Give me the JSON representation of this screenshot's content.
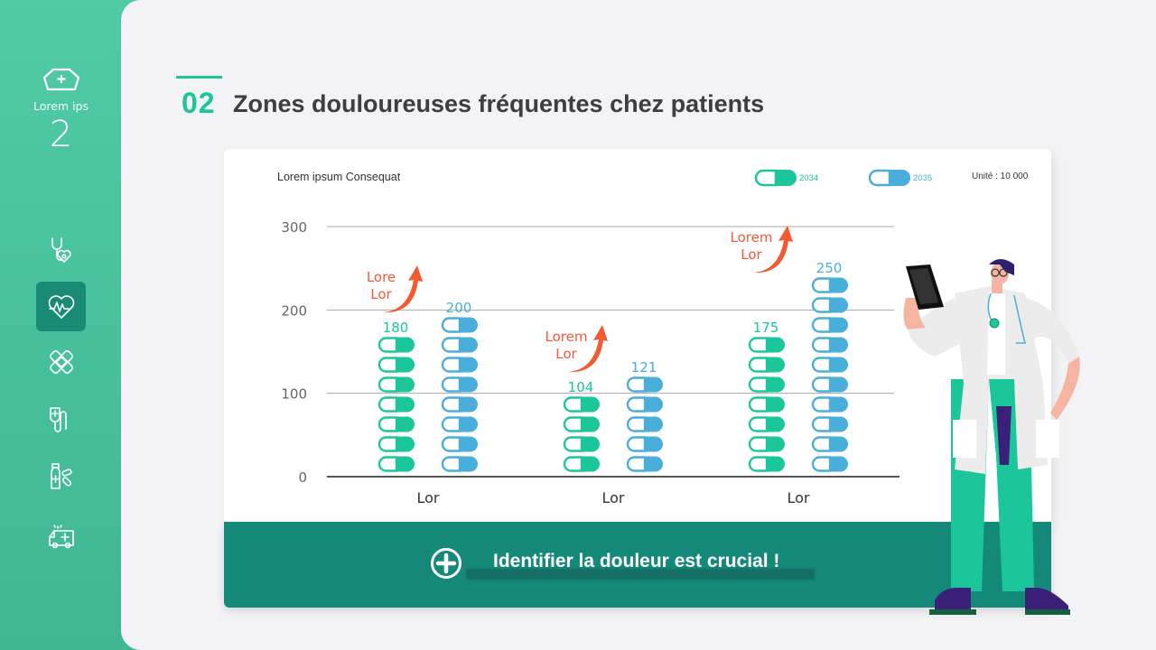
{
  "sidebar": {
    "brand": {
      "icon": "nurse-cap-icon",
      "label": "Lorem ips",
      "number": "2"
    },
    "items": [
      {
        "icon": "stethoscope-heart-icon",
        "active": false
      },
      {
        "icon": "heart-pulse-icon",
        "active": true
      },
      {
        "icon": "bandage-icon",
        "active": false
      },
      {
        "icon": "iv-drip-icon",
        "active": false
      },
      {
        "icon": "medicine-bottle-pills-icon",
        "active": false
      },
      {
        "icon": "ambulance-icon",
        "active": false
      }
    ]
  },
  "header": {
    "number": "02",
    "title": "Zones douloureuses fréquentes chez patients"
  },
  "card": {
    "chart_title": "Lorem ipsum Consequat",
    "legend": [
      {
        "label": "2034",
        "color": "#1bc79a"
      },
      {
        "label": "2035",
        "color": "#4aaedb"
      }
    ],
    "unit": "Unité : 10 000"
  },
  "chart_data": {
    "type": "bar",
    "title": "Lorem ipsum Consequat",
    "xlabel": "",
    "ylabel": "",
    "unit": "Unité : 10 000",
    "categories": [
      "Lor",
      "Lor",
      "Lor"
    ],
    "series": [
      {
        "name": "2034",
        "color": "#1bc79a",
        "values": [
          180,
          104,
          175
        ]
      },
      {
        "name": "2035",
        "color": "#4aaedb",
        "values": [
          200,
          121,
          250
        ]
      }
    ],
    "yticks": [
      0,
      100,
      200,
      300
    ],
    "ylim": [
      0,
      300
    ],
    "grid": true,
    "legend_position": "top-right",
    "annotations": [
      {
        "text": "Lore\nLor",
        "category_index": 0,
        "color": "#f05a3a",
        "arrow": "up-right"
      },
      {
        "text": "Lorem\nLor",
        "category_index": 1,
        "color": "#f05a3a",
        "arrow": "up-right"
      },
      {
        "text": "Lorem\nLor",
        "category_index": 2,
        "color": "#f05a3a",
        "arrow": "up-right"
      }
    ],
    "pill_counts": {
      "2034": [
        7,
        4,
        7
      ],
      "2035": [
        8,
        5,
        10
      ]
    }
  },
  "footer": {
    "icon": "plus-circle-icon",
    "text": "Identifier la douleur est crucial !"
  },
  "colors": {
    "accent": "#1bc79a",
    "secondary": "#4aaedb",
    "annotation": "#f05a3a",
    "footer": "#14897a",
    "sidebar": "#4cc6a0",
    "active_nav": "#198b74"
  }
}
